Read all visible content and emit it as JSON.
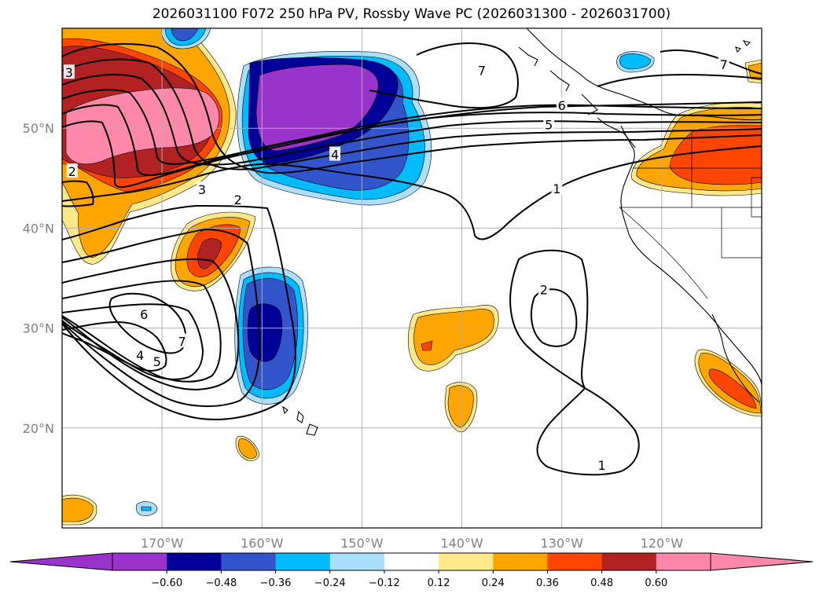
{
  "title": "2026031100 F072 250 hPa PV, Rossby Wave PC (2026031300 - 2026031700)",
  "map": {
    "projection": "cylindrical",
    "lon_range": [
      -180,
      -110
    ],
    "lat_range": [
      10,
      60
    ],
    "gridlines": true,
    "lat_ticks": [
      {
        "lat": 50,
        "label": "50°N"
      },
      {
        "lat": 40,
        "label": "40°N"
      },
      {
        "lat": 30,
        "label": "30°N"
      },
      {
        "lat": 20,
        "label": "20°N"
      }
    ],
    "lon_ticks": [
      {
        "lon": -170,
        "label": "170°W"
      },
      {
        "lon": -160,
        "label": "160°W"
      },
      {
        "lon": -150,
        "label": "150°W"
      },
      {
        "lon": -140,
        "label": "140°W"
      },
      {
        "lon": -130,
        "label": "130°W"
      },
      {
        "lon": -120,
        "label": "120°W"
      }
    ],
    "contour_labels": [
      {
        "text": "7",
        "lon": -168,
        "lat": 28.6
      },
      {
        "text": "6",
        "lon": -171.8,
        "lat": 31.3
      },
      {
        "text": "5",
        "lon": -170.5,
        "lat": 26.6
      },
      {
        "text": "4",
        "lon": -172.2,
        "lat": 27.2
      },
      {
        "text": "2",
        "lon": -162.4,
        "lat": 42.8
      },
      {
        "text": "3",
        "lon": -166,
        "lat": 43.8
      },
      {
        "text": "4",
        "lon": -152.7,
        "lat": 47.3
      },
      {
        "text": "3",
        "lon": -179.3,
        "lat": 55.5
      },
      {
        "text": "2",
        "lon": -179,
        "lat": 45.6
      },
      {
        "text": "7",
        "lon": -138,
        "lat": 55.7
      },
      {
        "text": "6",
        "lon": -130,
        "lat": 52.2
      },
      {
        "text": "5",
        "lon": -131.3,
        "lat": 50.3
      },
      {
        "text": "1",
        "lon": -130.5,
        "lat": 43.9
      },
      {
        "text": "2",
        "lon": -131.8,
        "lat": 33.8
      },
      {
        "text": "1",
        "lon": -126,
        "lat": 16.2
      },
      {
        "text": "7",
        "lon": -113.8,
        "lat": 56.3
      }
    ]
  },
  "colorbar": {
    "levels": [
      -0.72,
      -0.6,
      -0.48,
      -0.36,
      -0.24,
      -0.12,
      0.12,
      0.24,
      0.36,
      0.48,
      0.6,
      0.72
    ],
    "colors": [
      "#9933cc",
      "#000099",
      "#3355cc",
      "#00bbff",
      "#aadfff",
      "#ffffff",
      "#ffe88a",
      "#ffa500",
      "#ff4500",
      "#b22222",
      "#ff88aa"
    ],
    "under_color": "#9933cc",
    "over_color": "#ff88aa",
    "tick_labels": [
      "−0.60",
      "−0.48",
      "−0.36",
      "−0.24",
      "−0.12",
      "0.12",
      "0.24",
      "0.36",
      "0.48",
      "0.60"
    ]
  }
}
